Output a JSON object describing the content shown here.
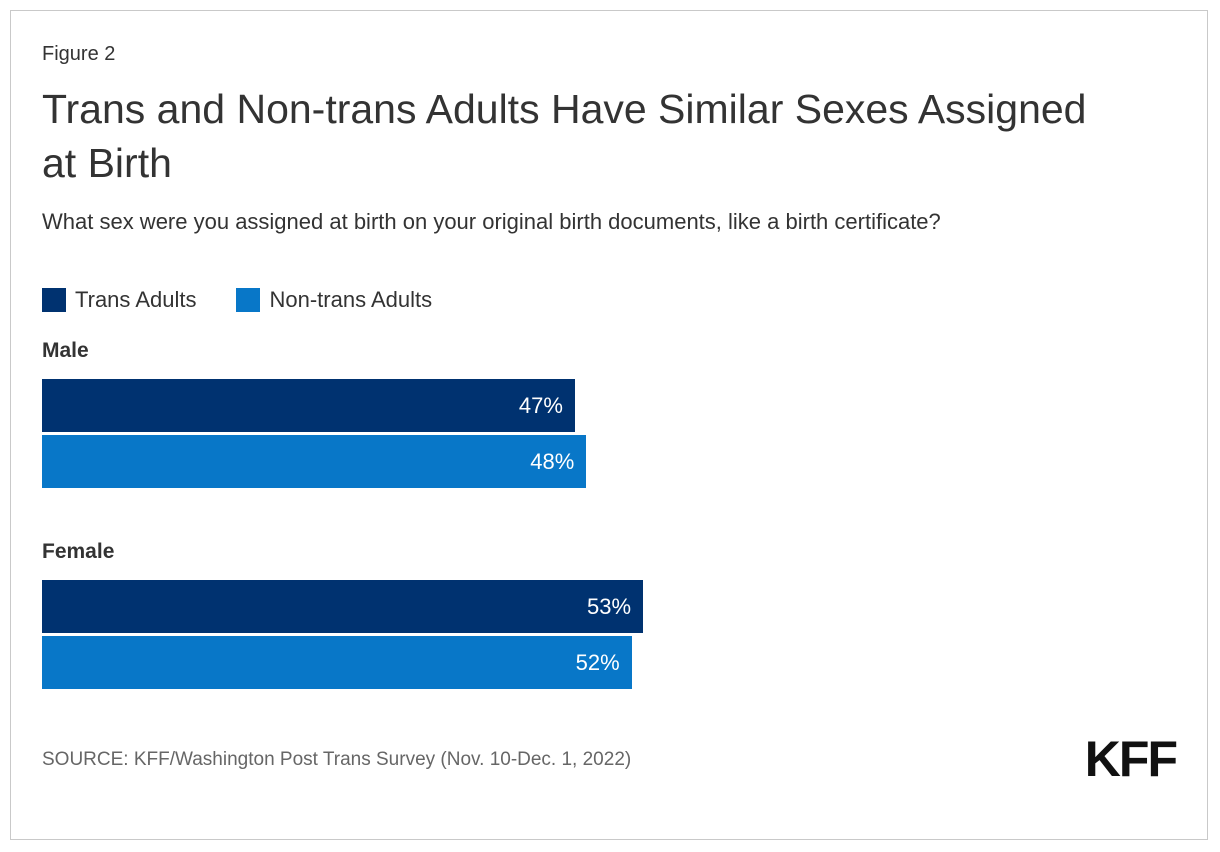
{
  "header": {
    "figure_label": "Figure 2",
    "title": "Trans and Non-trans Adults Have Similar Sexes Assigned at Birth",
    "subtitle": "What sex were you assigned at birth on your original birth documents, like a birth certificate?"
  },
  "chart_data": {
    "type": "bar",
    "orientation": "horizontal",
    "title": "Trans and Non-trans Adults Have Similar Sexes Assigned at Birth",
    "categories": [
      "Male",
      "Female"
    ],
    "series": [
      {
        "name": "Trans Adults",
        "color": "#003270",
        "values": [
          47,
          53
        ],
        "labels": [
          "47%",
          "53%"
        ]
      },
      {
        "name": "Non-trans Adults",
        "color": "#0877C8",
        "values": [
          48,
          52
        ],
        "labels": [
          "48%",
          "52%"
        ]
      }
    ],
    "xlim": [
      0,
      100
    ],
    "grid": false,
    "legend_position": "top-left",
    "value_label_color": "#ffffff",
    "value_label_position": "inside-end"
  },
  "footer": {
    "source": "SOURCE: KFF/Washington Post Trans Survey (Nov. 10-Dec. 1, 2022)",
    "logo_text": "KFF"
  },
  "colors": {
    "card_border": "#c9c9c9",
    "text": "#333333",
    "source_text": "#666666",
    "background": "#ffffff"
  }
}
